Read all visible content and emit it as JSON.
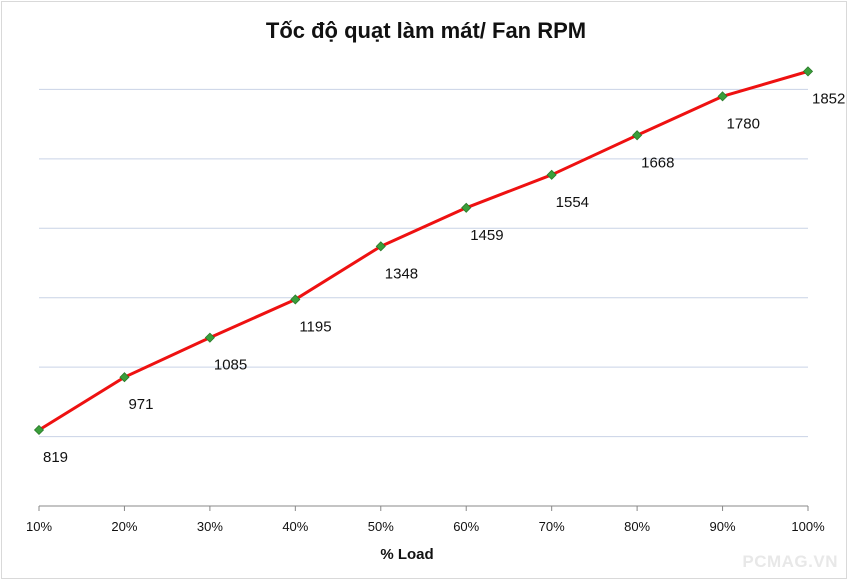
{
  "chart_data": {
    "type": "line",
    "title": "Tốc độ quạt làm mát/ Fan RPM",
    "xlabel": "% Load",
    "ylabel": "",
    "categories": [
      "10%",
      "20%",
      "30%",
      "40%",
      "50%",
      "60%",
      "70%",
      "80%",
      "90%",
      "100%"
    ],
    "series": [
      {
        "values": [
          819,
          971,
          1085,
          1195,
          1348,
          1459,
          1554,
          1668,
          1780,
          1852
        ]
      }
    ],
    "ylim": [
      600,
      2000
    ],
    "grid": true,
    "legend": "none",
    "line_color": "#ee1111",
    "marker_color": "#3a9e3a",
    "grid_color": "#c9d3e6"
  },
  "watermark": "PCMAG.VN"
}
